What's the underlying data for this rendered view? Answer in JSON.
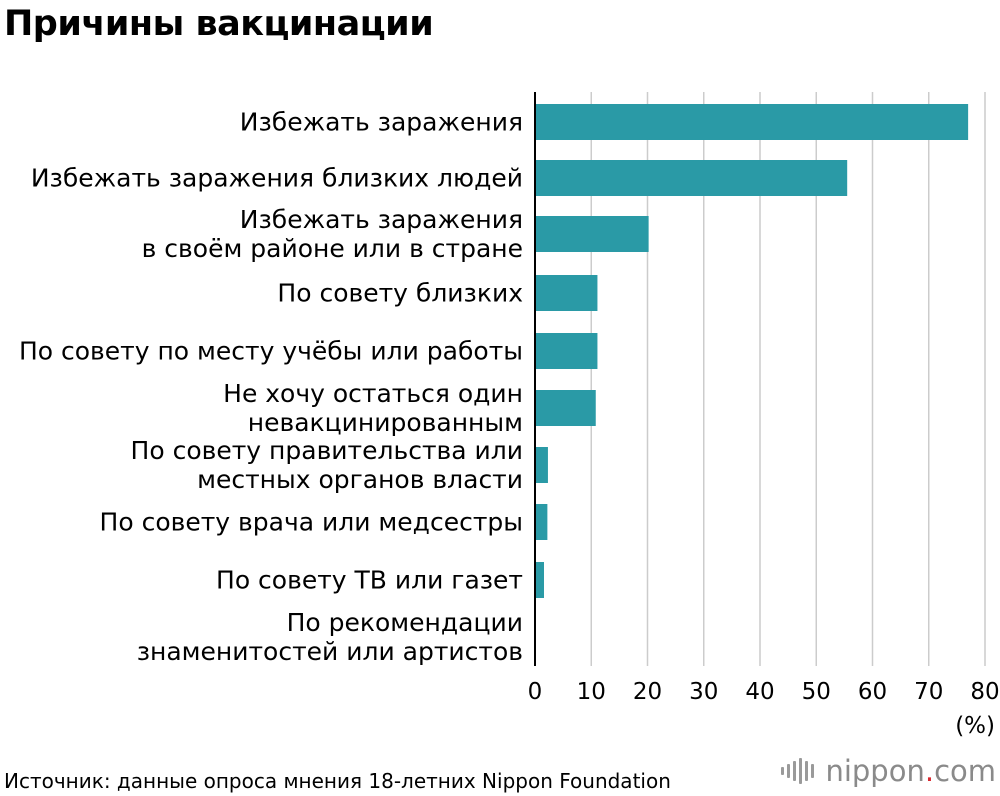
{
  "title": "Причины вакцинации",
  "source": "Источник: данные опроса мнения 18-летних Nippon Foundation",
  "logo": {
    "name": "nippon",
    "dot": ".",
    "tld": "com"
  },
  "colors": {
    "bar": "#2a9aa6",
    "grid": "#cccccc",
    "axis": "#000000"
  },
  "chart_data": {
    "type": "bar",
    "orientation": "horizontal",
    "categories": [
      [
        "Избежать заражения"
      ],
      [
        "Избежать заражения близких людей"
      ],
      [
        "Избежать заражения",
        "в своём районе или в стране"
      ],
      [
        "По совету близких"
      ],
      [
        "По совету по месту учёбы или работы"
      ],
      [
        "Не хочу остаться один",
        "невакцинированным"
      ],
      [
        "По совету правительства или",
        "местных органов власти"
      ],
      [
        "По совету врача или медсестры"
      ],
      [
        "По совету ТВ или газет"
      ],
      [
        "По рекомендации",
        "знаменитостей или артистов"
      ]
    ],
    "values": [
      77.0,
      55.5,
      20.2,
      11.1,
      11.1,
      10.8,
      2.3,
      2.2,
      1.6,
      0
    ],
    "xlim": [
      0,
      80
    ],
    "xticks": [
      0,
      10,
      20,
      30,
      40,
      50,
      60,
      70,
      80
    ],
    "unit": "(%)",
    "grid": true
  }
}
